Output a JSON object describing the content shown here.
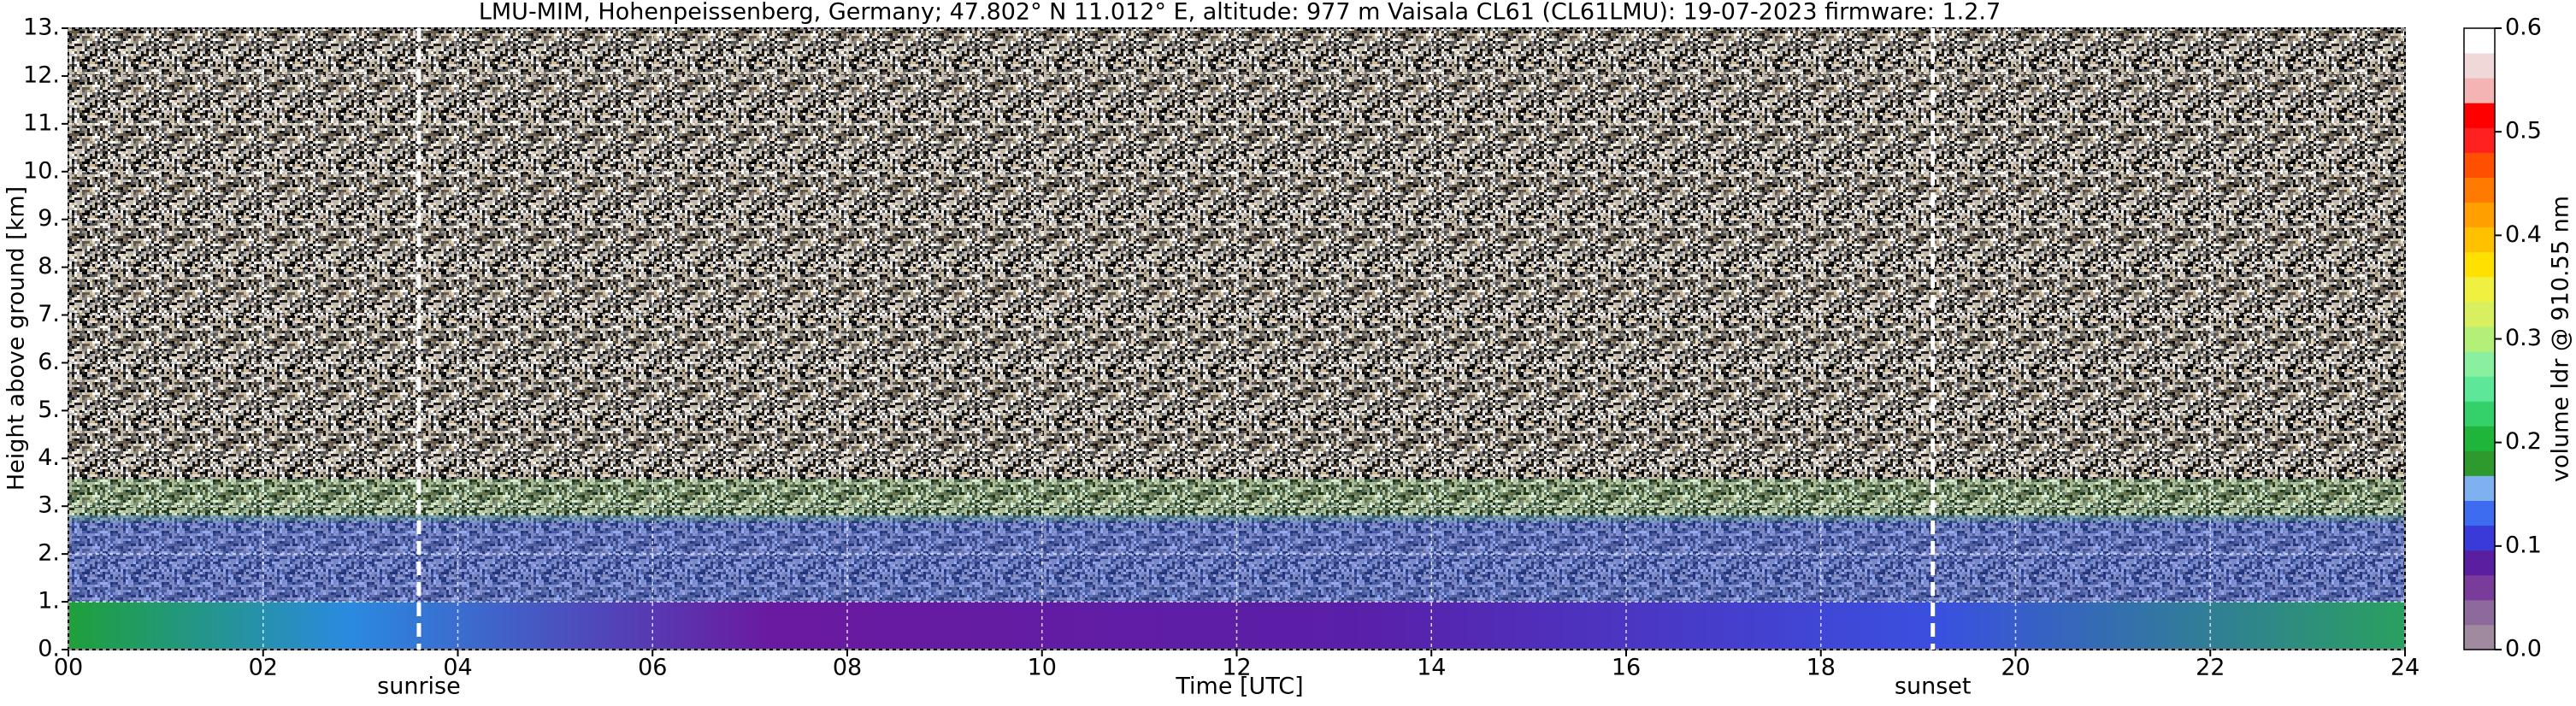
{
  "chart_data": {
    "type": "heatmap",
    "title": "LMU-MIM, Hohenpeissenberg, Germany; 47.802° N 11.012° E, altitude: 977 m    Vaisala CL61 (CL61LMU): 19-07-2023    firmware: 1.2.7",
    "xlabel": "Time [UTC]",
    "ylabel": "Height above ground [km]",
    "xlim": [
      0,
      24
    ],
    "ylim": [
      0,
      13
    ],
    "xticks": [
      {
        "value": 0,
        "label": "00"
      },
      {
        "value": 2,
        "label": "02"
      },
      {
        "value": 4,
        "label": "04"
      },
      {
        "value": 6,
        "label": "06"
      },
      {
        "value": 8,
        "label": "08"
      },
      10,
      12,
      14,
      16,
      18,
      20,
      22,
      24
    ],
    "yticks": [
      {
        "value": 0,
        "label": "0."
      },
      {
        "value": 1,
        "label": "1."
      },
      {
        "value": 2,
        "label": "2."
      },
      {
        "value": 3,
        "label": "3."
      },
      {
        "value": 4,
        "label": "4."
      },
      {
        "value": 5,
        "label": "5."
      },
      {
        "value": 6,
        "label": "6."
      },
      {
        "value": 7,
        "label": "7."
      },
      {
        "value": 8,
        "label": "8."
      },
      {
        "value": 9,
        "label": "9."
      },
      {
        "value": 10,
        "label": "10."
      },
      {
        "value": 11,
        "label": "11."
      },
      {
        "value": 12,
        "label": "12."
      },
      {
        "value": 13,
        "label": "13."
      }
    ],
    "grid": true,
    "annotations": [
      {
        "x": 3.6,
        "label": "sunrise"
      },
      {
        "x": 19.15,
        "label": "sunset"
      }
    ],
    "colorbar": {
      "label": "volume ldr @ 910.55 nm",
      "clim": [
        0,
        0.6
      ],
      "ticks": [
        {
          "value": 0,
          "label": "0.0"
        },
        0.1,
        0.2,
        0.3,
        0.4,
        0.5,
        0.6
      ],
      "colors": [
        "#a08aa0",
        "#8c6a9c",
        "#7a3c9a",
        "#5a1fa0",
        "#3a3ad8",
        "#3d6cf0",
        "#7fb0f0",
        "#2e9a2e",
        "#1fb43a",
        "#34d06a",
        "#5ce898",
        "#8af0a0",
        "#b4f078",
        "#d8f060",
        "#f0f040",
        "#ffe000",
        "#ffc000",
        "#ffa000",
        "#ff7a00",
        "#ff5000",
        "#ff2020",
        "#ff0000",
        "#f4b4b4",
        "#f0d8d8",
        "#ffffff"
      ]
    }
  }
}
